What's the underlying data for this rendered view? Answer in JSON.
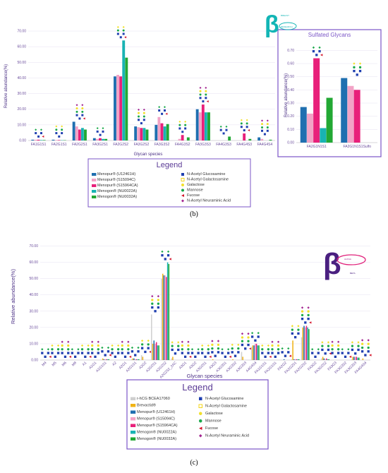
{
  "panel_b": {
    "caption": "(b)",
    "legend_title": "Legend",
    "inset_title": "Sulfated Glycans",
    "logo_text": [
      "BREAST",
      "RESEARCH"
    ]
  },
  "panel_c": {
    "caption": "(c)",
    "legend_title": "Legend",
    "logo_text": [
      "ALPHA",
      "BETA"
    ]
  },
  "monosaccharides": [
    {
      "name": "N-Acetyl Glucosamine",
      "color": "#1f3fb0",
      "icon": "square-icon"
    },
    {
      "name": "N-Acetyl Galactosamine",
      "color": "#f3d51a",
      "icon": "square-outline-icon"
    },
    {
      "name": "Galactose",
      "color": "#f2e02a",
      "icon": "circle-icon"
    },
    {
      "name": "Mannose",
      "color": "#1aa84a",
      "icon": "circle-icon"
    },
    {
      "name": "Fucose",
      "color": "#d4142a",
      "icon": "triangle-icon"
    },
    {
      "name": "N-Acetyl Neuraminic Acid",
      "color": "#a2238f",
      "icon": "diamond-icon"
    }
  ],
  "chart_data": [
    {
      "type": "bar",
      "xlabel": "Glycan species",
      "ylabel": "Relative abundance(%)",
      "ylim": [
        0,
        70
      ],
      "yticks": [
        "0.00",
        "10.00",
        "20.00",
        "30.00",
        "40.00",
        "50.00",
        "60.00",
        "70.00"
      ],
      "legend_position": "bottom",
      "categories": [
        "FA1G1S1",
        "FA2G1S1",
        "FA2G2S1",
        "FA3G2S1",
        "FA2G2S2",
        "FA3G2S2",
        "FA3G3S2",
        "FA4G3S2",
        "FA3G3S3",
        "FA4G3S3",
        "FA4G4S3",
        "FA4G4S4"
      ],
      "series": [
        {
          "name": "Menopur® (U12461H)",
          "color": "#1f6fb0",
          "values": [
            0.5,
            0.5,
            12,
            1.5,
            41,
            9,
            10,
            0,
            20,
            0,
            0,
            2
          ]
        },
        {
          "name": "Menopur® (S15094C)",
          "color": "#f2a3c6",
          "values": [
            0.5,
            0.3,
            9,
            1,
            42,
            8.5,
            15,
            1,
            18,
            0,
            0,
            1
          ]
        },
        {
          "name": "Menopur® (S15964CA)",
          "color": "#e8207a",
          "values": [
            0.5,
            0.3,
            7,
            1.5,
            41,
            8,
            11,
            3.5,
            23,
            0,
            4.5,
            0
          ]
        },
        {
          "name": "Menogon® (NU0022A)",
          "color": "#19b3b3",
          "values": [
            0.3,
            0.2,
            8,
            1,
            64,
            8,
            9,
            0,
            18,
            0,
            0,
            0
          ]
        },
        {
          "name": "Menogon® (NU0032A)",
          "color": "#22a834",
          "values": [
            0.3,
            0.2,
            7,
            1,
            53,
            7,
            10.5,
            2,
            18,
            2.5,
            1,
            0.5
          ]
        }
      ]
    },
    {
      "type": "bar",
      "title": "Sulfated Glycans",
      "xlabel": "",
      "ylabel": "Relative abundance(%)",
      "ylim": [
        0,
        0.75
      ],
      "yticks": [
        "0.00",
        "0.10",
        "0.20",
        "0.30",
        "0.40",
        "0.50",
        "0.60",
        "0.70"
      ],
      "categories": [
        "FA2G1N1S1",
        "FA2G1N1S1Sulfo"
      ],
      "series": [
        {
          "name": "Menopur® (U12461H)",
          "color": "#1f6fb0",
          "values": [
            0.27,
            0.49
          ]
        },
        {
          "name": "Menopur® (S15094C)",
          "color": "#f2a3c6",
          "values": [
            0.22,
            0.43
          ]
        },
        {
          "name": "Menopur® (S15964CA)",
          "color": "#e8207a",
          "values": [
            0.64,
            0.4
          ]
        },
        {
          "name": "Menogon® (NU0022A)",
          "color": "#19b3b3",
          "values": [
            0.11,
            0
          ]
        },
        {
          "name": "Menogon® (NU0032A)",
          "color": "#22a834",
          "values": [
            0.34,
            0
          ]
        }
      ]
    },
    {
      "type": "bar",
      "xlabel": "Glycan species",
      "ylabel": "Relative abundance(%)",
      "ylim": [
        0,
        75
      ],
      "yticks": [
        "0.00",
        "10.00",
        "20.00",
        "30.00",
        "40.00",
        "50.00",
        "60.00",
        "70.00"
      ],
      "legend_position": "bottom",
      "categories": [
        "M4",
        "M5",
        "M6",
        "M8",
        "A1",
        "A1G1",
        "A1G1S1",
        "A2",
        "A2G1",
        "A2G1S1",
        "A2G2",
        "A2G2S1",
        "A2G2S2",
        "A2G2S2_2AC",
        "A3G1",
        "A3G2",
        "A3G2S1",
        "A3G3",
        "A3G3S1",
        "A3G3S2",
        "A3G3S3",
        "A4G4S4",
        "FA1G1S1",
        "FA2G1S1",
        "FA2G2",
        "FA2G2S1",
        "FA2G2S2",
        "FA3G2",
        "FA3G2S2",
        "FA3G3",
        "FA3G3S2",
        "FA3G3S3",
        "FA4G4S4"
      ],
      "series": [
        {
          "name": "r-hCG BCEA17060",
          "color": "#cfcfcf",
          "values": [
            0,
            0,
            0,
            0,
            0,
            0,
            0,
            0,
            0,
            0.5,
            3,
            28,
            50,
            1,
            0,
            0,
            0,
            0,
            0,
            0,
            5,
            8,
            0,
            0,
            0,
            0.5,
            14,
            0,
            1,
            0,
            0,
            0.5,
            0
          ]
        },
        {
          "name": "Brevactid®",
          "color": "#f0b315",
          "values": [
            0,
            0,
            0,
            0,
            0,
            0,
            1,
            0,
            0,
            1,
            2,
            10,
            53,
            2,
            0,
            0,
            0,
            0.5,
            0,
            0.5,
            2,
            9,
            0,
            0,
            0,
            12,
            20,
            0,
            2,
            0,
            0,
            2,
            1
          ]
        },
        {
          "name": "Menopur® (U12461H)",
          "color": "#1f6fb0",
          "values": [
            0,
            0,
            0,
            0,
            0,
            0,
            0.5,
            0,
            0,
            1,
            0,
            12,
            52,
            0,
            0,
            0,
            0,
            0,
            0,
            0,
            0,
            9,
            0,
            0,
            0.5,
            0.5,
            21,
            0,
            1,
            0,
            0,
            2,
            0
          ]
        },
        {
          "name": "Menopur® (S15094C)",
          "color": "#f2a3c6",
          "values": [
            0,
            0,
            0,
            0,
            0,
            0,
            0.5,
            0,
            0,
            0.5,
            0,
            10,
            52,
            0,
            0,
            0,
            0,
            0,
            0,
            0,
            0,
            10,
            0,
            0,
            0,
            0.5,
            20,
            0,
            0.5,
            0,
            0,
            2,
            0
          ]
        },
        {
          "name": "Menopur® (S15964CA)",
          "color": "#e8207a",
          "values": [
            0,
            0,
            0,
            0,
            0,
            0,
            0.5,
            0,
            0,
            0.5,
            0,
            11,
            51,
            0,
            0,
            0,
            0,
            0,
            0,
            0,
            0,
            10,
            0,
            0,
            0,
            0.5,
            21,
            0,
            1,
            0,
            0,
            2,
            0
          ]
        },
        {
          "name": "Menogon® (NU0022A)",
          "color": "#19b3b3",
          "values": [
            0,
            0,
            0,
            0,
            0,
            0,
            0.5,
            0,
            0,
            0.5,
            0,
            9,
            60,
            0,
            0,
            0,
            0,
            0,
            0,
            0,
            0,
            9,
            0,
            0,
            0,
            0.5,
            20,
            0,
            0.5,
            0,
            0,
            1.5,
            0
          ]
        },
        {
          "name": "Menogon® (NU0032A)",
          "color": "#22a834",
          "values": [
            0,
            0,
            0,
            0,
            0,
            0,
            0.5,
            0,
            0,
            0.5,
            0,
            9,
            59,
            0,
            0,
            0,
            0,
            0,
            0,
            0,
            0,
            9,
            0,
            0,
            0,
            0.5,
            19,
            0,
            0.5,
            0,
            0,
            1.5,
            0
          ]
        }
      ]
    }
  ]
}
